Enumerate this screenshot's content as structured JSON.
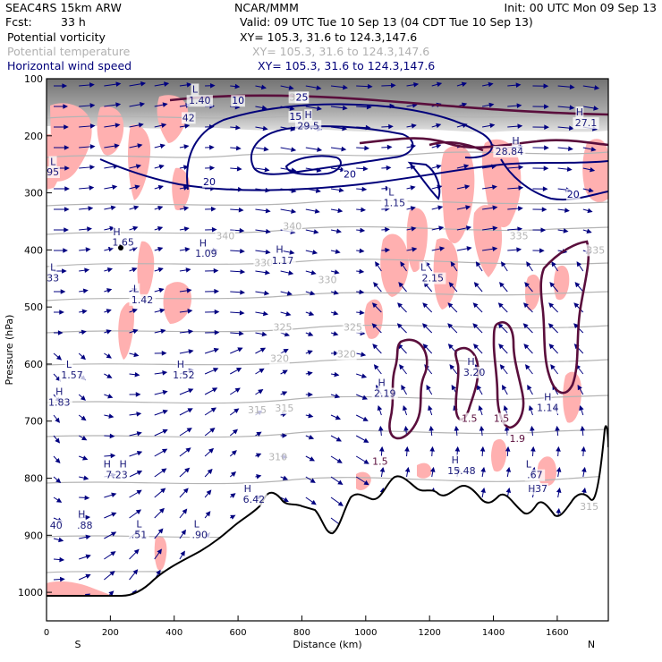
{
  "header": {
    "model": "SEAC4RS 15km ARW",
    "center": "NCAR/MMM",
    "init": "Init: 00 UTC Mon 09 Sep 13",
    "fcst_label": "Fcst:",
    "fcst_value": "33 h",
    "valid": "Valid: 09 UTC Tue 10 Sep 13 (04 CDT Tue 10 Sep 13)",
    "fields": [
      {
        "name": "Potential vorticity",
        "xy": "XY= 105.3, 31.6 to 124.3,147.6"
      },
      {
        "name": "Potential temperature",
        "xy": "XY= 105.3, 31.6 to 124.3,147.6"
      },
      {
        "name": "Horizontal wind speed",
        "xy": "XY= 105.3, 31.6 to 124.3,147.6"
      }
    ],
    "colors": {
      "pv": "#ffb0b0",
      "theta": "#b4b4b4",
      "wind": "#000080",
      "contour": "#5a0e3c"
    }
  },
  "chart_data": {
    "type": "cross-section",
    "title": "SEAC4RS 15km ARW cross-section",
    "xlabel": "Distance (km)",
    "ylabel": "Pressure (hPa)",
    "xlim": [
      0,
      1760
    ],
    "ylim": [
      1050,
      100
    ],
    "x_ticks": [
      "0",
      "200",
      "400",
      "600",
      "800",
      "1000",
      "1200",
      "1400",
      "1600"
    ],
    "y_ticks": [
      "100",
      "200",
      "300",
      "400",
      "500",
      "600",
      "700",
      "800",
      "900",
      "1000"
    ],
    "x_end_labels": [
      "S",
      "N"
    ],
    "theta_labels": [
      {
        "text": "340",
        "x": 770,
        "p": 358
      },
      {
        "text": "340",
        "x": 560,
        "p": 375
      },
      {
        "text": "335",
        "x": 1480,
        "p": 375
      },
      {
        "text": "335",
        "x": 1720,
        "p": 400
      },
      {
        "text": "330",
        "x": 680,
        "p": 422
      },
      {
        "text": "330",
        "x": 880,
        "p": 452
      },
      {
        "text": "325",
        "x": 740,
        "p": 535
      },
      {
        "text": "325",
        "x": 960,
        "p": 535
      },
      {
        "text": "320",
        "x": 730,
        "p": 590
      },
      {
        "text": "320",
        "x": 940,
        "p": 582
      },
      {
        "text": "315",
        "x": 660,
        "p": 680
      },
      {
        "text": "315",
        "x": 745,
        "p": 677
      },
      {
        "text": "310",
        "x": 725,
        "p": 762
      },
      {
        "text": "315",
        "x": 1700,
        "p": 849
      },
      {
        "text": "355",
        "x": 790,
        "p": 132
      }
    ],
    "wind_labels": [
      {
        "text": "10",
        "x": 600,
        "p": 138
      },
      {
        "text": "25",
        "x": 800,
        "p": 132
      },
      {
        "text": "15",
        "x": 780,
        "p": 166
      },
      {
        "text": "20",
        "x": 510,
        "p": 280
      },
      {
        "text": "20",
        "x": 950,
        "p": 267
      },
      {
        "text": "20",
        "x": 1650,
        "p": 302
      }
    ],
    "pv_labels": [
      {
        "text": "1.5",
        "x": 1045,
        "p": 770
      },
      {
        "text": "1.5",
        "x": 1325,
        "p": 695
      },
      {
        "text": "1.5",
        "x": 1425,
        "p": 695
      },
      {
        "text": "1.9",
        "x": 1475,
        "p": 730
      }
    ],
    "extrema": [
      {
        "text": "L",
        "x": 465,
        "p": 118
      },
      {
        "text": "1.40",
        "x": 480,
        "p": 138
      },
      {
        "text": "42",
        "x": 445,
        "p": 168
      },
      {
        "text": "H",
        "x": 820,
        "p": 163
      },
      {
        "text": "29.5",
        "x": 820,
        "p": 182
      },
      {
        "text": "H",
        "x": 1670,
        "p": 158
      },
      {
        "text": "27.1",
        "x": 1690,
        "p": 177
      },
      {
        "text": "H",
        "x": 1470,
        "p": 208
      },
      {
        "text": "28.84",
        "x": 1450,
        "p": 227
      },
      {
        "text": "L",
        "x": 20,
        "p": 245
      },
      {
        "text": "95",
        "x": 20,
        "p": 263
      },
      {
        "text": "L",
        "x": 1080,
        "p": 298
      },
      {
        "text": "1.15",
        "x": 1090,
        "p": 317
      },
      {
        "text": "H",
        "x": 220,
        "p": 368
      },
      {
        "text": "1.65",
        "x": 240,
        "p": 386
      },
      {
        "text": "H",
        "x": 490,
        "p": 388
      },
      {
        "text": "1.09",
        "x": 500,
        "p": 406
      },
      {
        "text": "H",
        "x": 730,
        "p": 399
      },
      {
        "text": "1.17",
        "x": 740,
        "p": 418
      },
      {
        "text": "L",
        "x": 20,
        "p": 430
      },
      {
        "text": "33",
        "x": 20,
        "p": 449
      },
      {
        "text": "L",
        "x": 1180,
        "p": 430
      },
      {
        "text": "2.15",
        "x": 1210,
        "p": 449
      },
      {
        "text": "L",
        "x": 280,
        "p": 468
      },
      {
        "text": "1.42",
        "x": 300,
        "p": 487
      },
      {
        "text": "L",
        "x": 70,
        "p": 600
      },
      {
        "text": "1.57",
        "x": 80,
        "p": 619
      },
      {
        "text": "H",
        "x": 420,
        "p": 600
      },
      {
        "text": "1.52",
        "x": 430,
        "p": 619
      },
      {
        "text": "H",
        "x": 1330,
        "p": 595
      },
      {
        "text": "3.20",
        "x": 1340,
        "p": 614
      },
      {
        "text": "H",
        "x": 40,
        "p": 648
      },
      {
        "text": "1.83",
        "x": 40,
        "p": 667
      },
      {
        "text": "H",
        "x": 1050,
        "p": 632
      },
      {
        "text": "2.19",
        "x": 1060,
        "p": 651
      },
      {
        "text": "H",
        "x": 1570,
        "p": 657
      },
      {
        "text": "1.14",
        "x": 1570,
        "p": 676
      },
      {
        "text": "H",
        "x": 190,
        "p": 775
      },
      {
        "text": "H",
        "x": 240,
        "p": 775
      },
      {
        "text": "7.23",
        "x": 220,
        "p": 794
      },
      {
        "text": "H",
        "x": 1280,
        "p": 768
      },
      {
        "text": "15.48",
        "x": 1300,
        "p": 787
      },
      {
        "text": "L",
        "x": 1510,
        "p": 775
      },
      {
        "text": ".67",
        "x": 1530,
        "p": 794
      },
      {
        "text": "H",
        "x": 630,
        "p": 818
      },
      {
        "text": "6.42",
        "x": 650,
        "p": 837
      },
      {
        "text": "H",
        "x": 1520,
        "p": 818
      },
      {
        "text": "37",
        "x": 1550,
        "p": 818
      },
      {
        "text": "H",
        "x": 110,
        "p": 863
      },
      {
        "text": "40",
        "x": 30,
        "p": 882
      },
      {
        "text": ".88",
        "x": 120,
        "p": 882
      },
      {
        "text": "L",
        "x": 290,
        "p": 880
      },
      {
        "text": ".51",
        "x": 290,
        "p": 899
      },
      {
        "text": "L",
        "x": 470,
        "p": 880
      },
      {
        "text": ".90",
        "x": 480,
        "p": 899
      }
    ]
  }
}
